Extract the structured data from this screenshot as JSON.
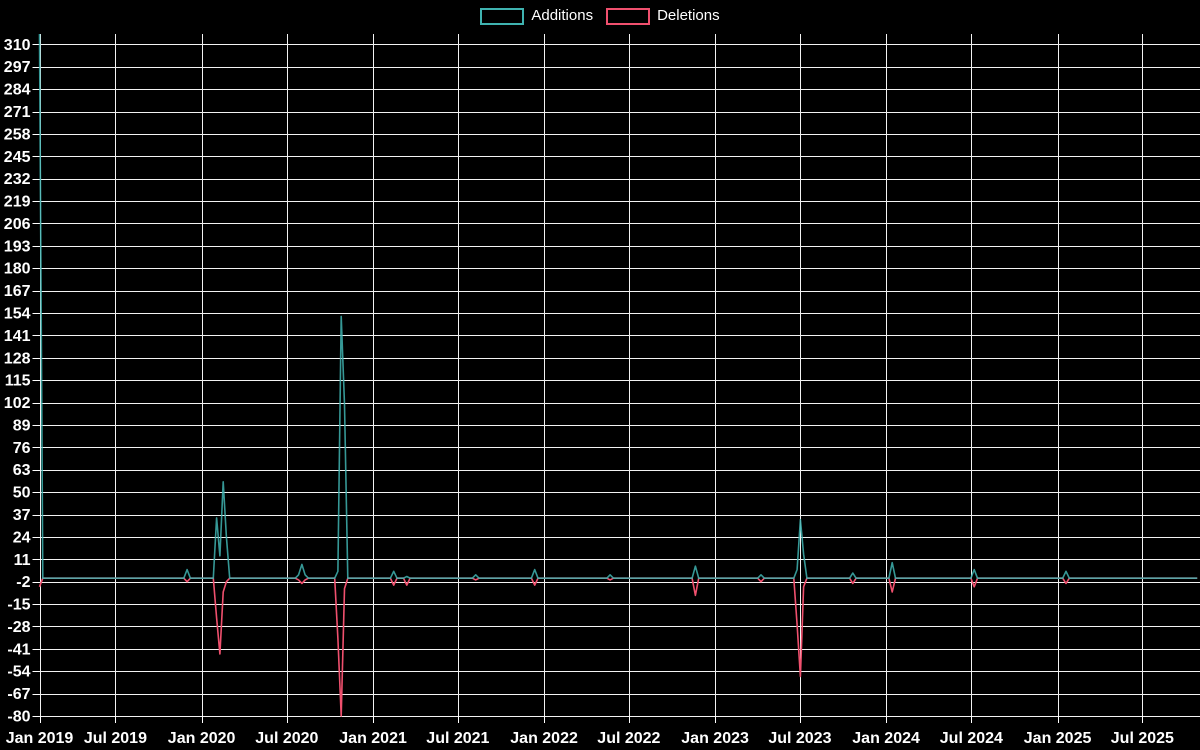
{
  "page": {
    "background": "#000000",
    "text_color": "#ffffff",
    "grid_color": "#f2f2f2"
  },
  "legend": {
    "items": [
      {
        "label": "Additions",
        "color": "#3fb3b0"
      },
      {
        "label": "Deletions",
        "color": "#f0506e"
      }
    ]
  },
  "chart_data": {
    "type": "line",
    "title": "",
    "xlabel": "",
    "ylabel": "",
    "legend_position": "top-center",
    "grid": true,
    "frequency": "weekly",
    "x_axis": {
      "start_date": "2019-01-20",
      "end_date": "2025-11-01",
      "last_week": "2025-10-26",
      "tick_labels": [
        "Jan 2019",
        "Jul 2019",
        "Jan 2020",
        "Jul 2020",
        "Jan 2021",
        "Jul 2021",
        "Jan 2022",
        "Jul 2022",
        "Jan 2023",
        "Jul 2023",
        "Jan 2024",
        "Jul 2024",
        "Jan 2025",
        "Jul 2025"
      ],
      "tick_dates": [
        "2019-01-20",
        "2019-07-01",
        "2020-01-01",
        "2020-07-01",
        "2021-01-01",
        "2021-07-01",
        "2022-01-01",
        "2022-07-01",
        "2023-01-01",
        "2023-07-01",
        "2024-01-01",
        "2024-07-01",
        "2025-01-01",
        "2025-07-01"
      ]
    },
    "y_axis": {
      "min": -80,
      "max": 316,
      "tick_step": 13,
      "ticks": [
        -80,
        -67,
        -54,
        -41,
        -28,
        -15,
        -2,
        11,
        24,
        37,
        50,
        63,
        76,
        89,
        102,
        115,
        128,
        141,
        154,
        167,
        180,
        193,
        206,
        219,
        232,
        245,
        258,
        271,
        284,
        297,
        310
      ]
    },
    "series": [
      {
        "name": "Additions",
        "key": "additions",
        "color": "#3fb3b0",
        "opacity": 0.85
      },
      {
        "name": "Deletions",
        "key": "deletions",
        "color": "#f0506e",
        "opacity": 1
      }
    ],
    "default_weekly_value": 0,
    "weekly_events": [
      {
        "date": "2019-01-20",
        "additions": 316,
        "deletions": -5
      },
      {
        "date": "2019-12-01",
        "additions": 5,
        "deletions": -2
      },
      {
        "date": "2020-02-02",
        "additions": 35,
        "deletions": -23
      },
      {
        "date": "2020-02-09",
        "additions": 13,
        "deletions": -44
      },
      {
        "date": "2020-02-16",
        "additions": 56,
        "deletions": -8
      },
      {
        "date": "2020-02-23",
        "additions": 24,
        "deletions": -2
      },
      {
        "date": "2020-07-26",
        "additions": 2,
        "deletions": -1
      },
      {
        "date": "2020-08-02",
        "additions": 8,
        "deletions": -3
      },
      {
        "date": "2020-08-09",
        "additions": 2,
        "deletions": -1
      },
      {
        "date": "2020-10-18",
        "additions": 4,
        "deletions": -35
      },
      {
        "date": "2020-10-25",
        "additions": 152,
        "deletions": -80
      },
      {
        "date": "2020-11-01",
        "additions": 101,
        "deletions": -6
      },
      {
        "date": "2021-02-14",
        "additions": 4,
        "deletions": -4
      },
      {
        "date": "2021-03-14",
        "additions": 1,
        "deletions": -4
      },
      {
        "date": "2021-08-08",
        "additions": 2,
        "deletions": -1
      },
      {
        "date": "2021-12-12",
        "additions": 5,
        "deletions": -4
      },
      {
        "date": "2022-05-22",
        "additions": 2,
        "deletions": -1
      },
      {
        "date": "2022-11-20",
        "additions": 7,
        "deletions": -10
      },
      {
        "date": "2023-04-09",
        "additions": 2,
        "deletions": -2
      },
      {
        "date": "2023-06-25",
        "additions": 5,
        "deletions": -27
      },
      {
        "date": "2023-07-02",
        "additions": 34,
        "deletions": -57
      },
      {
        "date": "2023-07-09",
        "additions": 14,
        "deletions": -5
      },
      {
        "date": "2023-10-22",
        "additions": 3,
        "deletions": -3
      },
      {
        "date": "2024-01-14",
        "additions": 9,
        "deletions": -8
      },
      {
        "date": "2024-07-07",
        "additions": 5,
        "deletions": -5
      },
      {
        "date": "2025-01-19",
        "additions": 4,
        "deletions": -3
      }
    ]
  }
}
